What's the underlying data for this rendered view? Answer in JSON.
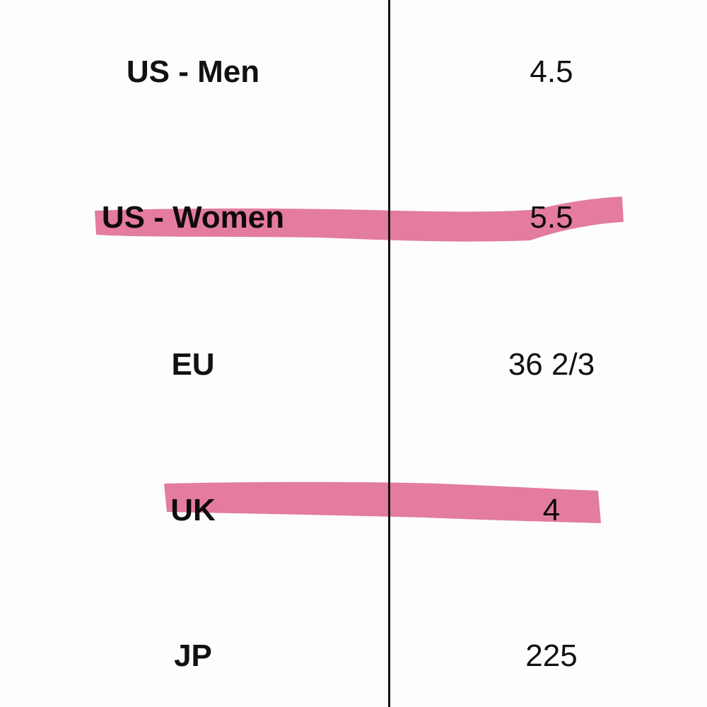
{
  "table": {
    "rows": [
      [
        "US - Men",
        "4.5"
      ],
      [
        "US - Women",
        "5.5"
      ],
      [
        "EU",
        "36 2/3"
      ],
      [
        "UK",
        "4"
      ],
      [
        "JP",
        "225"
      ]
    ]
  }
}
